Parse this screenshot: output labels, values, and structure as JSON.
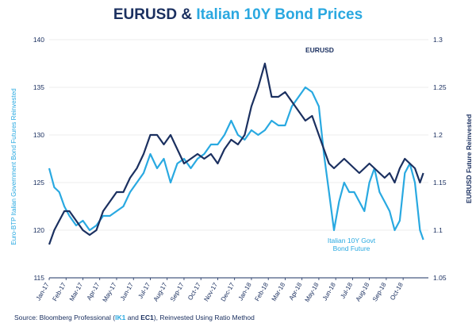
{
  "title": {
    "part1": "EURUSD",
    "amp": " & ",
    "part2": "Italian 10Y Bond Prices"
  },
  "source": {
    "prefix": "Source: Bloomberg Professional (",
    "code1": "IK1",
    "and": " and ",
    "code2": "EC1",
    "suffix": "), Reinvested Using Ratio Method"
  },
  "colors": {
    "btp": "#29a9e1",
    "eurusd": "#1b3060",
    "axis": "#1b3060",
    "grid": "#dcdcdc"
  },
  "chart_data": {
    "type": "line",
    "title": "EURUSD & Italian 10Y Bond Prices",
    "ylabel_left": "Euro-BTP Italian Government Bond Futures Reinvested",
    "ylabel_right": "EURUSD Future Reinvested",
    "ylim_left": [
      115,
      140
    ],
    "yticks_left": [
      115,
      120,
      125,
      130,
      135,
      140
    ],
    "ylim_right": [
      1.05,
      1.3
    ],
    "yticks_right": [
      "1.05",
      "1.1",
      "1.15",
      "1.2",
      "1.25",
      "1.3"
    ],
    "x_tick_labels": [
      "Jan-17",
      "Feb-17",
      "Mar-17",
      "Apr-17",
      "May-17",
      "Jun-17",
      "Jul-17",
      "Aug-17",
      "Sep-17",
      "Oct-17",
      "Nov-17",
      "Dec-17",
      "Jan-18",
      "Feb-18",
      "Mar-18",
      "Apr-18",
      "May-18",
      "Jun-18",
      "Jul-18",
      "Aug-18",
      "Sep-18",
      "Oct-18"
    ],
    "x_domain": [
      0,
      22.5
    ],
    "annotations": [
      {
        "text": "EURUSD",
        "series": "EURUSD Future Reinvested"
      },
      {
        "text": "Italian 10Y Govt",
        "text2": "Bond Future",
        "series": "Italian 10Y Govt Bond Future"
      }
    ],
    "series": [
      {
        "name": "Italian 10Y Govt Bond Future",
        "axis": "left",
        "color": "#29a9e1",
        "x": [
          0,
          0.3,
          0.6,
          0.9,
          1.2,
          1.6,
          2,
          2.4,
          2.8,
          3.2,
          3.6,
          4,
          4.4,
          4.8,
          5.2,
          5.6,
          6,
          6.4,
          6.8,
          7.2,
          7.6,
          8,
          8.4,
          8.8,
          9.2,
          9.6,
          10,
          10.4,
          10.8,
          11.2,
          11.6,
          12,
          12.4,
          12.8,
          13.2,
          13.6,
          14,
          14.4,
          14.8,
          15.2,
          15.6,
          16,
          16.3,
          16.6,
          16.9,
          17.2,
          17.5,
          17.8,
          18.1,
          18.4,
          18.7,
          19,
          19.3,
          19.6,
          19.9,
          20.2,
          20.5,
          20.8,
          21.1,
          21.4,
          21.7,
          22,
          22.2
        ],
        "values": [
          126.5,
          124.5,
          124,
          122.5,
          121.5,
          120.5,
          121,
          120,
          120.5,
          121.5,
          121.5,
          122,
          122.5,
          124,
          125,
          126,
          128,
          126.5,
          127.5,
          125,
          127,
          127.5,
          126.5,
          127.5,
          128,
          129,
          129,
          130,
          131.5,
          130,
          129.5,
          130.5,
          130,
          130.5,
          131.5,
          131,
          131,
          133,
          134,
          135,
          134.5,
          133,
          128,
          124,
          120,
          123,
          125,
          124,
          124,
          123,
          122,
          125,
          126.5,
          124,
          123,
          122,
          120,
          121,
          126,
          127,
          125,
          120,
          119
        ]
      },
      {
        "name": "EURUSD Future Reinvested",
        "axis": "right",
        "color": "#1b3060",
        "x": [
          0,
          0.3,
          0.6,
          0.9,
          1.2,
          1.6,
          2,
          2.4,
          2.8,
          3.2,
          3.6,
          4,
          4.4,
          4.8,
          5.2,
          5.6,
          6,
          6.4,
          6.8,
          7.2,
          7.6,
          8,
          8.4,
          8.8,
          9.2,
          9.6,
          10,
          10.4,
          10.8,
          11.2,
          11.6,
          12,
          12.4,
          12.8,
          13.2,
          13.6,
          14,
          14.4,
          14.8,
          15.2,
          15.6,
          16,
          16.3,
          16.6,
          16.9,
          17.2,
          17.5,
          17.8,
          18.1,
          18.4,
          18.7,
          19,
          19.3,
          19.6,
          19.9,
          20.2,
          20.5,
          20.8,
          21.1,
          21.4,
          21.7,
          22,
          22.2
        ],
        "values": [
          1.085,
          1.1,
          1.11,
          1.12,
          1.12,
          1.11,
          1.1,
          1.095,
          1.1,
          1.12,
          1.13,
          1.14,
          1.14,
          1.155,
          1.165,
          1.18,
          1.2,
          1.2,
          1.19,
          1.2,
          1.185,
          1.17,
          1.175,
          1.18,
          1.175,
          1.18,
          1.17,
          1.185,
          1.195,
          1.19,
          1.2,
          1.23,
          1.25,
          1.275,
          1.24,
          1.24,
          1.245,
          1.235,
          1.225,
          1.215,
          1.22,
          1.2,
          1.185,
          1.17,
          1.165,
          1.17,
          1.175,
          1.17,
          1.165,
          1.16,
          1.165,
          1.17,
          1.165,
          1.16,
          1.155,
          1.16,
          1.15,
          1.165,
          1.175,
          1.17,
          1.165,
          1.15,
          1.16
        ]
      }
    ]
  }
}
